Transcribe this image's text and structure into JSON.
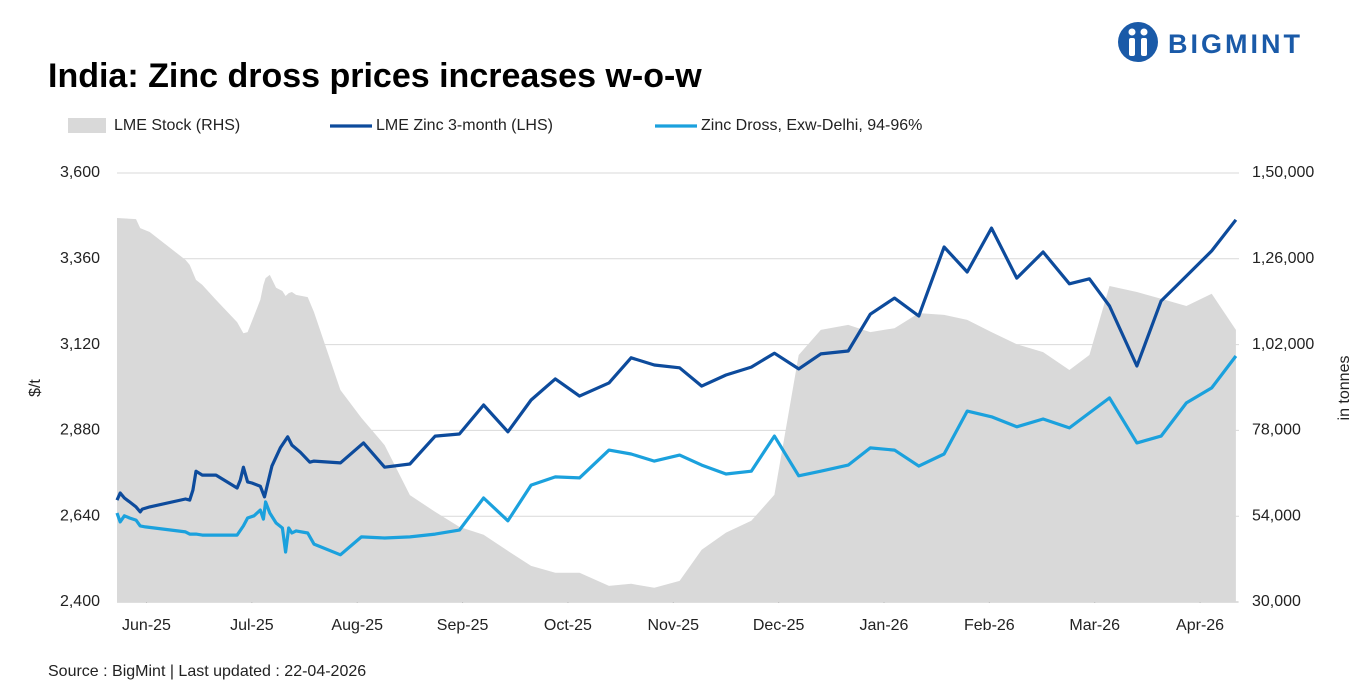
{
  "logo": "BIGMINT",
  "chart_data": {
    "type": "line",
    "title": "India: Zinc dross prices increases w-o-w",
    "source": "Source : BigMint | Last updated : 22-04-2026",
    "y_label": "$/t",
    "y2_label": "in tonnes",
    "xlim": [
      0.22,
      10.86
    ],
    "xticks": [
      {
        "value": 0.5,
        "label": "Jun-25"
      },
      {
        "value": 1.5,
        "label": "Jul-25"
      },
      {
        "value": 2.5,
        "label": "Aug-25"
      },
      {
        "value": 3.5,
        "label": "Sep-25"
      },
      {
        "value": 4.5,
        "label": "Oct-25"
      },
      {
        "value": 5.5,
        "label": "Nov-25"
      },
      {
        "value": 6.5,
        "label": "Dec-25"
      },
      {
        "value": 7.5,
        "label": "Jan-26"
      },
      {
        "value": 8.5,
        "label": "Feb-26"
      },
      {
        "value": 9.5,
        "label": "Mar-26"
      },
      {
        "value": 10.5,
        "label": "Apr-26"
      }
    ],
    "ylim": [
      2400,
      3600
    ],
    "yticks": [
      {
        "value": 2400,
        "label": "2,400"
      },
      {
        "value": 2640,
        "label": "2,640"
      },
      {
        "value": 2880,
        "label": "2,880"
      },
      {
        "value": 3120,
        "label": "3,120"
      },
      {
        "value": 3360,
        "label": "3,360"
      },
      {
        "value": 3600,
        "label": "3,600"
      }
    ],
    "y2lim": [
      30000,
      150000
    ],
    "y2ticks": [
      {
        "value": 30000,
        "label": "30,000"
      },
      {
        "value": 54000,
        "label": "54,000"
      },
      {
        "value": 78000,
        "label": "78,000"
      },
      {
        "value": 102000,
        "label": "1,02,000"
      },
      {
        "value": 126000,
        "label": "1,26,000"
      },
      {
        "value": 150000,
        "label": "1,50,000"
      }
    ],
    "grid": true,
    "series": [
      {
        "name": "LME Stock (RHS)",
        "type": "area",
        "axis": "y2",
        "color": "#d9d9d9",
        "x": [
          0.22,
          0.4,
          0.44,
          0.53,
          0.87,
          0.91,
          0.97,
          1.03,
          1.16,
          1.36,
          1.42,
          1.46,
          1.52,
          1.58,
          1.61,
          1.63,
          1.67,
          1.73,
          1.79,
          1.82,
          1.85,
          1.88,
          1.92,
          2.03,
          2.09,
          2.34,
          2.54,
          2.76,
          3.0,
          3.24,
          3.47,
          3.7,
          3.93,
          4.15,
          4.38,
          4.61,
          4.89,
          5.1,
          5.32,
          5.56,
          5.77,
          6.0,
          6.24,
          6.46,
          6.69,
          6.9,
          7.16,
          7.37,
          7.6,
          7.83,
          8.07,
          8.29,
          8.52,
          8.76,
          9.01,
          9.26,
          9.45,
          9.64,
          9.9,
          10.13,
          10.37,
          10.61,
          10.84
        ],
        "values": [
          137400,
          137100,
          134600,
          133500,
          125700,
          124300,
          120100,
          118700,
          114500,
          108300,
          105200,
          105500,
          110000,
          114500,
          118700,
          120600,
          121500,
          117900,
          117000,
          115600,
          116400,
          116700,
          115900,
          115300,
          111100,
          89300,
          81500,
          73900,
          59900,
          55200,
          51000,
          48800,
          44300,
          40100,
          38200,
          38200,
          34500,
          35100,
          34000,
          35900,
          44600,
          49400,
          52700,
          60000,
          99100,
          106100,
          107500,
          105500,
          106600,
          110800,
          110300,
          108900,
          105500,
          102100,
          99900,
          94900,
          99100,
          118400,
          116700,
          114800,
          112800,
          116200,
          106100
        ]
      },
      {
        "name": "LME  Zinc  3-month (LHS)",
        "type": "line",
        "color": "#0d4b9c",
        "x": [
          0.22,
          0.25,
          0.29,
          0.34,
          0.4,
          0.44,
          0.46,
          0.53,
          0.87,
          0.91,
          0.94,
          0.97,
          1.03,
          1.16,
          1.36,
          1.39,
          1.42,
          1.46,
          1.5,
          1.58,
          1.62,
          1.69,
          1.77,
          1.84,
          1.88,
          1.96,
          2.05,
          2.09,
          2.34,
          2.56,
          2.76,
          3.0,
          3.24,
          3.47,
          3.7,
          3.93,
          4.15,
          4.38,
          4.61,
          4.89,
          5.1,
          5.32,
          5.56,
          5.77,
          6.0,
          6.24,
          6.46,
          6.69,
          6.9,
          7.16,
          7.37,
          7.6,
          7.83,
          8.07,
          8.29,
          8.52,
          8.76,
          9.01,
          9.26,
          9.45,
          9.64,
          9.9,
          10.13,
          10.37,
          10.61,
          10.84
        ],
        "values": [
          2685,
          2705,
          2691,
          2680,
          2666,
          2652,
          2660,
          2666,
          2688,
          2685,
          2713,
          2766,
          2755,
          2755,
          2719,
          2741,
          2777,
          2736,
          2733,
          2724,
          2694,
          2780,
          2831,
          2862,
          2839,
          2819,
          2791,
          2794,
          2789,
          2845,
          2777,
          2786,
          2864,
          2870,
          2951,
          2876,
          2965,
          3024,
          2976,
          3013,
          3083,
          3063,
          3055,
          3004,
          3035,
          3057,
          3096,
          3052,
          3094,
          3102,
          3205,
          3250,
          3200,
          3393,
          3323,
          3446,
          3306,
          3379,
          3290,
          3304,
          3228,
          3060,
          3242,
          3312,
          3382,
          3469
        ]
      },
      {
        "name": "Zinc Dross, Exw-Delhi, 94-96%",
        "type": "line",
        "color": "#1ba1dd",
        "x": [
          0.22,
          0.25,
          0.29,
          0.34,
          0.4,
          0.44,
          0.49,
          0.87,
          0.91,
          0.97,
          1.03,
          1.36,
          1.42,
          1.46,
          1.52,
          1.58,
          1.61,
          1.63,
          1.67,
          1.73,
          1.79,
          1.82,
          1.85,
          1.88,
          1.92,
          2.03,
          2.09,
          2.34,
          2.54,
          2.76,
          3.0,
          3.24,
          3.47,
          3.7,
          3.93,
          4.15,
          4.38,
          4.61,
          4.89,
          5.1,
          5.32,
          5.56,
          5.77,
          6.0,
          6.24,
          6.46,
          6.69,
          6.9,
          7.16,
          7.37,
          7.6,
          7.83,
          8.07,
          8.29,
          8.52,
          8.76,
          9.01,
          9.26,
          9.45,
          9.64,
          9.9,
          10.13,
          10.37,
          10.61,
          10.84
        ],
        "values": [
          2649,
          2624,
          2641,
          2635,
          2629,
          2613,
          2610,
          2596,
          2590,
          2590,
          2587,
          2587,
          2613,
          2635,
          2641,
          2657,
          2632,
          2680,
          2649,
          2621,
          2607,
          2540,
          2607,
          2593,
          2599,
          2593,
          2562,
          2532,
          2582,
          2579,
          2582,
          2590,
          2601,
          2691,
          2627,
          2727,
          2750,
          2747,
          2825,
          2814,
          2794,
          2811,
          2783,
          2758,
          2766,
          2864,
          2753,
          2766,
          2783,
          2831,
          2825,
          2780,
          2814,
          2934,
          2918,
          2890,
          2912,
          2887,
          2929,
          2971,
          2845,
          2864,
          2957,
          2999,
          3088
        ]
      }
    ]
  }
}
